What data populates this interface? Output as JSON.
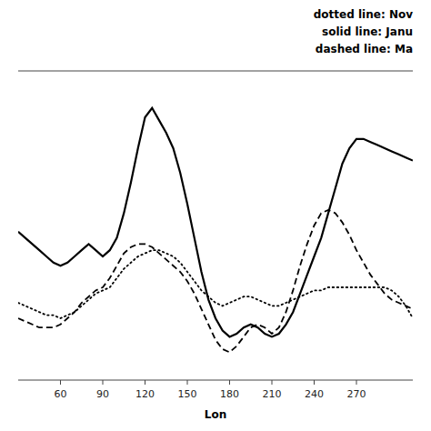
{
  "chart_data": {
    "type": "line",
    "title": "",
    "xlabel": "Lon",
    "annotations": [
      "dotted line: Nov",
      "solid line: Janu",
      "dashed line: Ma"
    ],
    "x": [
      30,
      35,
      40,
      45,
      50,
      55,
      60,
      65,
      70,
      75,
      80,
      85,
      90,
      95,
      100,
      105,
      110,
      115,
      120,
      125,
      130,
      135,
      140,
      145,
      150,
      155,
      160,
      165,
      170,
      175,
      180,
      185,
      190,
      195,
      200,
      205,
      210,
      215,
      220,
      225,
      230,
      235,
      240,
      245,
      250,
      255,
      260,
      265,
      270,
      275,
      280,
      285,
      290,
      295,
      300,
      305,
      310
    ],
    "series": [
      {
        "color": "#000000",
        "line_style": "dotted",
        "values": [
          0.55,
          0.54,
          0.53,
          0.52,
          0.51,
          0.51,
          0.5,
          0.51,
          0.52,
          0.54,
          0.56,
          0.58,
          0.59,
          0.6,
          0.63,
          0.66,
          0.68,
          0.7,
          0.71,
          0.72,
          0.72,
          0.71,
          0.7,
          0.68,
          0.65,
          0.62,
          0.59,
          0.57,
          0.55,
          0.54,
          0.55,
          0.56,
          0.57,
          0.57,
          0.56,
          0.55,
          0.54,
          0.54,
          0.55,
          0.56,
          0.57,
          0.58,
          0.59,
          0.59,
          0.6,
          0.6,
          0.6,
          0.6,
          0.6,
          0.6,
          0.6,
          0.6,
          0.6,
          0.59,
          0.57,
          0.54,
          0.5
        ]
      },
      {
        "color": "#000000",
        "line_style": "solid",
        "values": [
          0.78,
          0.76,
          0.74,
          0.72,
          0.7,
          0.68,
          0.67,
          0.68,
          0.7,
          0.72,
          0.74,
          0.72,
          0.7,
          0.72,
          0.76,
          0.84,
          0.94,
          1.05,
          1.15,
          1.18,
          1.14,
          1.1,
          1.05,
          0.97,
          0.87,
          0.76,
          0.65,
          0.56,
          0.5,
          0.46,
          0.44,
          0.45,
          0.47,
          0.48,
          0.47,
          0.45,
          0.44,
          0.45,
          0.48,
          0.52,
          0.58,
          0.64,
          0.7,
          0.76,
          0.84,
          0.92,
          1.0,
          1.05,
          1.08,
          1.08,
          1.07,
          1.06,
          1.05,
          1.04,
          1.03,
          1.02,
          1.01
        ]
      },
      {
        "color": "#000000",
        "line_style": "dashed",
        "values": [
          0.5,
          0.49,
          0.48,
          0.47,
          0.47,
          0.47,
          0.48,
          0.5,
          0.52,
          0.55,
          0.57,
          0.59,
          0.6,
          0.63,
          0.67,
          0.71,
          0.73,
          0.74,
          0.74,
          0.73,
          0.71,
          0.69,
          0.67,
          0.65,
          0.62,
          0.58,
          0.53,
          0.48,
          0.43,
          0.4,
          0.39,
          0.41,
          0.44,
          0.47,
          0.48,
          0.47,
          0.45,
          0.47,
          0.52,
          0.59,
          0.67,
          0.74,
          0.8,
          0.84,
          0.85,
          0.84,
          0.81,
          0.77,
          0.72,
          0.68,
          0.64,
          0.61,
          0.58,
          0.56,
          0.55,
          0.54,
          0.53
        ]
      }
    ],
    "xlim": [
      30,
      310
    ],
    "xticks": [
      60,
      90,
      120,
      150,
      180,
      210,
      240,
      270
    ],
    "ylim": [
      0.3,
      1.3
    ],
    "tick_labels": "x",
    "grid": false
  }
}
